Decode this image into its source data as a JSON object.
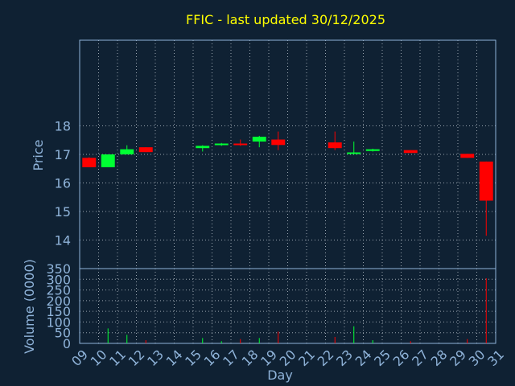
{
  "colors": {
    "background": "#0f2133",
    "title": "#ffff00",
    "axis_text": "#8fb3d9",
    "up": "#00ff33",
    "down": "#ff0000",
    "grid": "#c8d0d8"
  },
  "chart_data": {
    "type": "candlestick",
    "title": "FFIC - last updated 30/12/2025",
    "xlabel": "Day",
    "price_panel": {
      "ylabel": "Price",
      "ylim": [
        13.0,
        21.0
      ],
      "yticks": [
        14,
        15,
        16,
        17,
        18
      ]
    },
    "volume_panel": {
      "ylabel": "Volume (0000)",
      "ylim": [
        0,
        350
      ],
      "yticks": [
        0,
        50,
        100,
        150,
        200,
        250,
        300,
        350
      ]
    },
    "x_ticks": [
      "09",
      "10",
      "11",
      "12",
      "13",
      "14",
      "15",
      "16",
      "17",
      "18",
      "19",
      "20",
      "21",
      "22",
      "23",
      "24",
      "25",
      "26",
      "27",
      "28",
      "29",
      "30",
      "31"
    ],
    "grid": true,
    "candles": [
      {
        "slot": 0,
        "open": 16.88,
        "close": 16.55,
        "high": 16.9,
        "low": 16.55,
        "volume": 0
      },
      {
        "slot": 1,
        "open": 16.55,
        "close": 17.0,
        "high": 17.0,
        "low": 16.55,
        "volume": 70
      },
      {
        "slot": 2,
        "open": 17.0,
        "close": 17.18,
        "high": 17.32,
        "low": 17.0,
        "volume": 40
      },
      {
        "slot": 3,
        "open": 17.25,
        "close": 17.08,
        "high": 17.25,
        "low": 17.08,
        "volume": 15
      },
      {
        "slot": 6,
        "open": 17.22,
        "close": 17.3,
        "high": 17.32,
        "low": 17.1,
        "volume": 25
      },
      {
        "slot": 7,
        "open": 17.33,
        "close": 17.38,
        "high": 17.4,
        "low": 17.3,
        "volume": 10
      },
      {
        "slot": 8,
        "open": 17.38,
        "close": 17.33,
        "high": 17.52,
        "low": 17.3,
        "volume": 20
      },
      {
        "slot": 9,
        "open": 17.45,
        "close": 17.62,
        "high": 17.65,
        "low": 17.25,
        "volume": 25
      },
      {
        "slot": 10,
        "open": 17.52,
        "close": 17.33,
        "high": 17.8,
        "low": 17.15,
        "volume": 55
      },
      {
        "slot": 13,
        "open": 17.42,
        "close": 17.22,
        "high": 17.8,
        "low": 17.15,
        "volume": 30
      },
      {
        "slot": 14,
        "open": 17.05,
        "close": 17.07,
        "high": 17.45,
        "low": 17.05,
        "volume": 80
      },
      {
        "slot": 15,
        "open": 17.12,
        "close": 17.18,
        "high": 17.2,
        "low": 17.1,
        "volume": 15
      },
      {
        "slot": 17,
        "open": 17.15,
        "close": 17.05,
        "high": 17.15,
        "low": 17.05,
        "volume": 10
      },
      {
        "slot": 20,
        "open": 17.02,
        "close": 16.88,
        "high": 17.02,
        "low": 16.88,
        "volume": 20
      },
      {
        "slot": 21,
        "open": 16.75,
        "close": 15.38,
        "high": 16.75,
        "low": 14.15,
        "volume": 305
      }
    ]
  }
}
